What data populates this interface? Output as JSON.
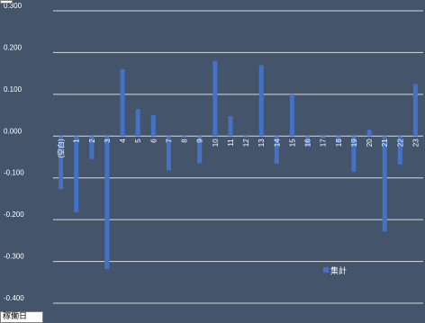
{
  "chart_data": {
    "type": "bar",
    "categories": [
      "(空白)",
      "1",
      "2",
      "3",
      "4",
      "5",
      "6",
      "7",
      "8",
      "9",
      "10",
      "11",
      "12",
      "13",
      "14",
      "15",
      "16",
      "17",
      "18",
      "19",
      "20",
      "21",
      "22",
      "23"
    ],
    "series": [
      {
        "name": "集計",
        "values": [
          -0.127,
          -0.182,
          -0.055,
          -0.318,
          0.16,
          0.065,
          0.05,
          -0.082,
          -0.003,
          -0.065,
          0.18,
          0.048,
          -0.003,
          0.17,
          -0.066,
          0.1,
          -0.025,
          -0.005,
          -0.015,
          -0.085,
          0.015,
          -0.228,
          -0.068,
          0.125
        ]
      }
    ],
    "y_ticks": [
      "0.300",
      "0.200",
      "0.100",
      "0.000",
      "-0.100",
      "-0.200",
      "-0.300",
      "-0.400"
    ],
    "ylim": [
      -0.4,
      0.3
    ],
    "grid": true,
    "legend_position": "bottom-right",
    "colors": {
      "background": "#44546a",
      "bar": "#4472c4",
      "grid": "#d9d9d9",
      "text": "#ffffff"
    }
  },
  "pivot_field_button": "稼働日"
}
